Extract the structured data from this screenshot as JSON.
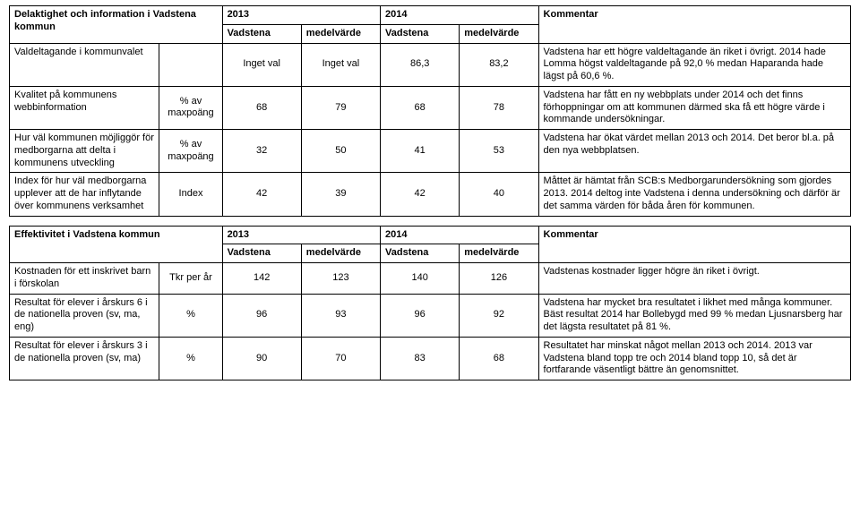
{
  "table1": {
    "title": "Delaktighet och information i Vadstena kommun",
    "year1": "2013",
    "year2": "2014",
    "commentHeader": "Kommentar",
    "colVadstena": "Vadstena",
    "colMedel": "medelvärde",
    "rows": [
      {
        "desc": "Valdeltagande i kommunvalet",
        "unit": "",
        "v1": "Inget val",
        "m1": "Inget val",
        "v2": "86,3",
        "m2": "83,2",
        "comment": "Vadstena har ett högre valdeltagande än riket i övrigt. 2014 hade Lomma högst valdeltagande på 92,0 % medan Haparanda hade lägst på 60,6 %."
      },
      {
        "desc": "Kvalitet på kommunens webbinformation",
        "unit": "% av maxpoäng",
        "v1": "68",
        "m1": "79",
        "v2": "68",
        "m2": "78",
        "comment": "Vadstena har fått en ny webbplats under 2014 och det finns förhoppningar om att kommunen därmed ska få ett högre värde i kommande undersökningar."
      },
      {
        "desc": "Hur väl kommunen möjliggör för medborgarna att delta i kommunens utveckling",
        "unit": "% av maxpoäng",
        "v1": "32",
        "m1": "50",
        "v2": "41",
        "m2": "53",
        "comment": "Vadstena har ökat värdet mellan 2013 och 2014. Det beror bl.a. på den nya webbplatsen."
      },
      {
        "desc": "Index för hur väl medborgarna upplever att de har inflytande över kommunens verksamhet",
        "unit": "Index",
        "v1": "42",
        "m1": "39",
        "v2": "42",
        "m2": "40",
        "comment": "Måttet är hämtat från SCB:s Medborgarundersökning som gjordes 2013. 2014 deltog inte Vadstena i denna undersökning och därför är det samma värden för båda åren för kommunen."
      }
    ]
  },
  "table2": {
    "title": "Effektivitet i Vadstena kommun",
    "year1": "2013",
    "year2": "2014",
    "commentHeader": "Kommentar",
    "colVadstena": "Vadstena",
    "colMedel": "medelvärde",
    "rows": [
      {
        "desc": "Kostnaden för ett inskrivet barn i förskolan",
        "unit": "Tkr per år",
        "v1": "142",
        "m1": "123",
        "v2": "140",
        "m2": "126",
        "comment": "Vadstenas kostnader ligger högre än riket i övrigt."
      },
      {
        "desc": "Resultat för elever i årskurs 6 i de nationella proven (sv, ma, eng)",
        "unit": "%",
        "v1": "96",
        "m1": "93",
        "v2": "96",
        "m2": "92",
        "comment": "Vadstena har mycket bra resultatet i likhet med många kommuner. Bäst resultat 2014 har Bollebygd med 99 % medan Ljusnarsberg har det lägsta resultatet på 81 %."
      },
      {
        "desc": "Resultat för elever i årskurs 3 i de nationella proven (sv, ma)",
        "unit": "%",
        "v1": "90",
        "m1": "70",
        "v2": "83",
        "m2": "68",
        "comment": "Resultatet har minskat något mellan 2013 och 2014. 2013 var Vadstena bland topp tre och 2014 bland topp 10, så det är fortfarande väsentligt bättre än genomsnittet."
      }
    ]
  }
}
